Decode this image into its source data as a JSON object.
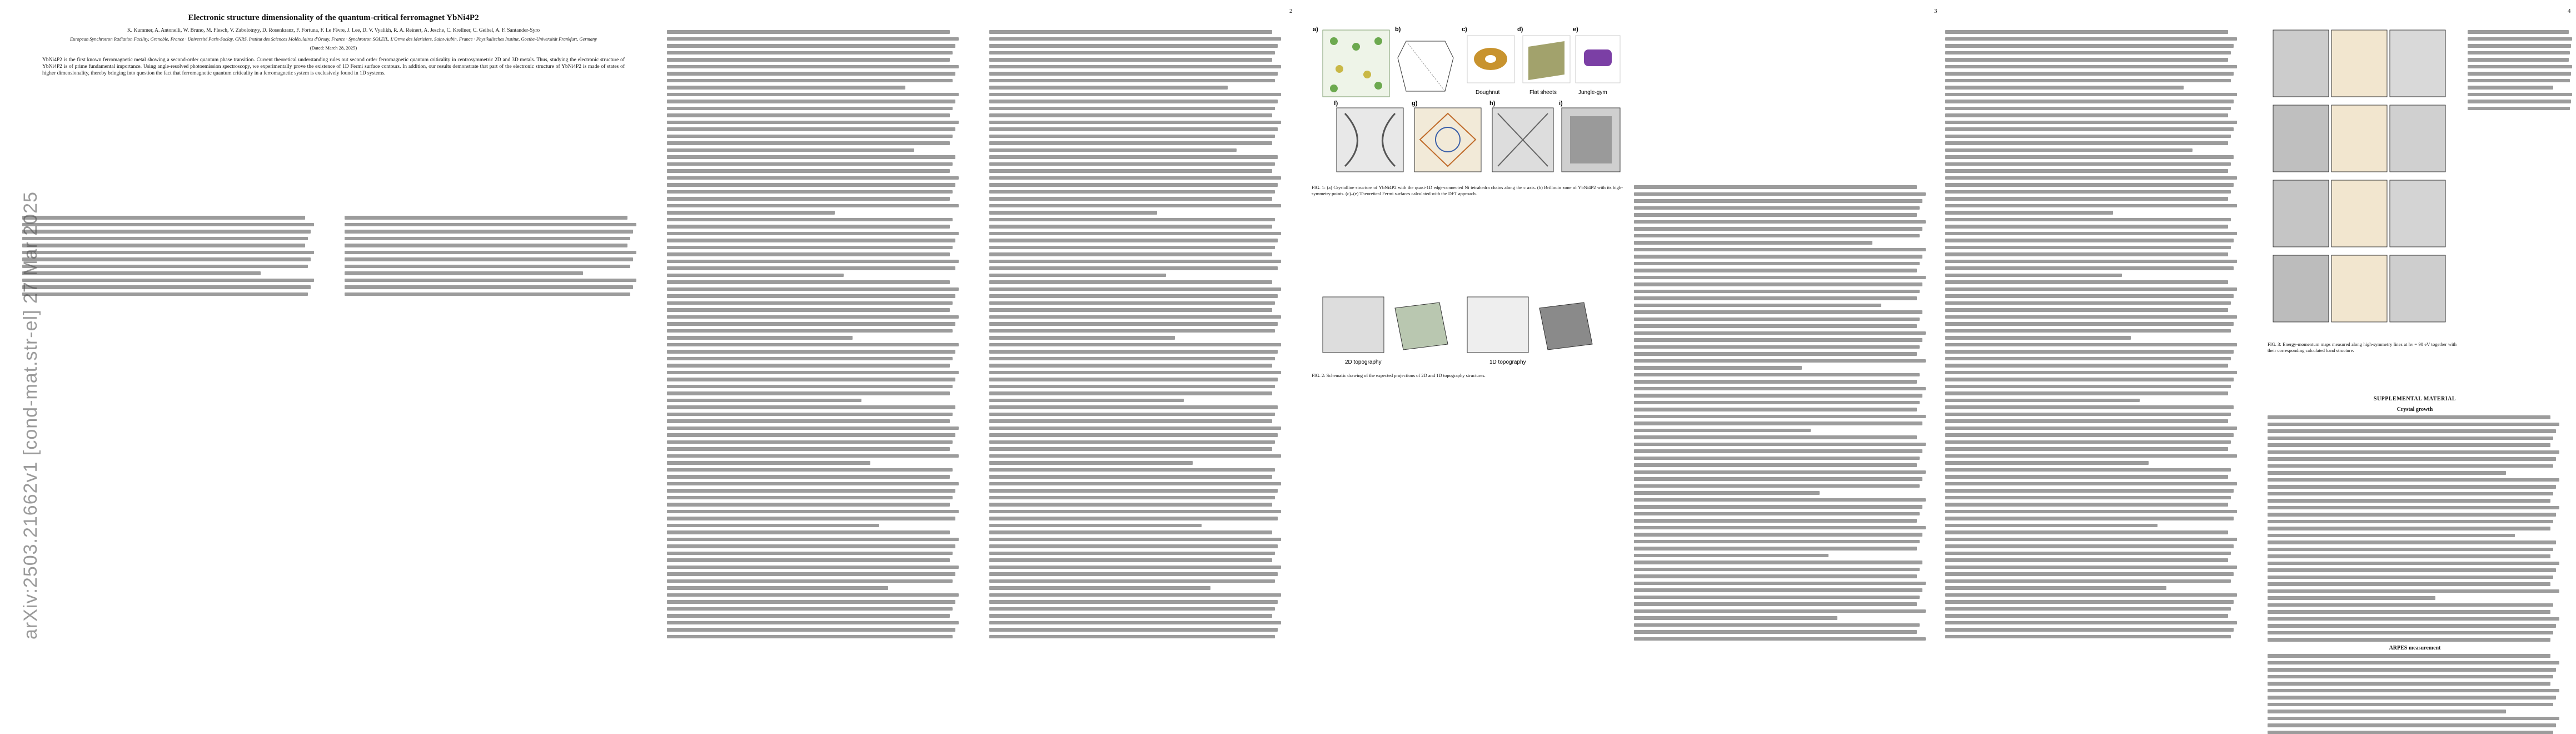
{
  "arxiv_id": "arXiv:2503.21662v1  [cond-mat.str-el]  27 Mar 2025",
  "page_numbers": [
    "2",
    "3",
    "4"
  ],
  "paper": {
    "title": "Electronic structure dimensionality of the quantum-critical ferromagnet YbNi4P2",
    "authors": "K. Kummer, A. Antonelli, W. Bruno, M. Flesch, V. Zabolotnyy, D. Rosenkranz, F. Fortuna, F. Le Fèvre, J. Lee, D. V. Vyalikh, R. A. Reinert, A. Jesche, C. Krellner, C. Geibel, A. F. Santander-Syro",
    "affiliations": "European Synchrotron Radiation Facility, Grenoble, France · Université Paris-Saclay, CNRS, Institut des Sciences Moléculaires d'Orsay, France · Synchrotron SOLEIL, L'Orme des Merisiers, Saint-Aubin, France · Physikalisches Institut, Goethe-Universität Frankfurt, Germany",
    "date": "(Dated: March 28, 2025)",
    "abstract": "YbNi4P2 is the first known ferromagnetic metal showing a second-order quantum phase transition. Current theoretical understanding rules out second order ferromagnetic quantum criticality in centrosymmetric 2D and 3D metals. Thus, studying the electronic structure of YbNi4P2 is of prime fundamental importance. Using angle-resolved photoemission spectroscopy, we experimentally prove the existence of 1D Fermi surface contours. In addition, our results demonstrate that part of the electronic structure of YbNi4P2 is made of states of higher dimensionality, thereby bringing into question the fact that ferromagnetic quantum criticality in a ferromagnetic system is exclusively found in 1D systems."
  },
  "page3": {
    "fig1_caption": "FIG. 1: (a) Crystalline structure of YbNi4P2 with the quasi-1D edge-connected Ni tetrahedra chains along the c axis. (b) Brillouin zone of YbNi4P2 with its high-symmetry points. (c)–(e) Theoretical Fermi surfaces calculated with the DFT approach.",
    "fig1_labels": [
      "a)",
      "b)",
      "c)",
      "d)",
      "e)",
      "f)",
      "g)",
      "h)",
      "i)"
    ],
    "fs_names": [
      "Doughnut",
      "Flat sheets",
      "Jungle-gym"
    ],
    "fig2_caption": "FIG. 2: Schematic drawing of the expected projections of 2D and 1D topography structures.",
    "fig2_labels": [
      "2D topography",
      "1D topography"
    ]
  },
  "page4": {
    "fig3_caption": "FIG. 3: Energy-momentum maps measured along high-symmetry lines at hν = 90 eV together with their corresponding calculated band structure.",
    "section_supp": "SUPPLEMENTAL MATERIAL",
    "sub_crystal": "Crystal growth",
    "sub_arpes": "ARPES measurement"
  }
}
